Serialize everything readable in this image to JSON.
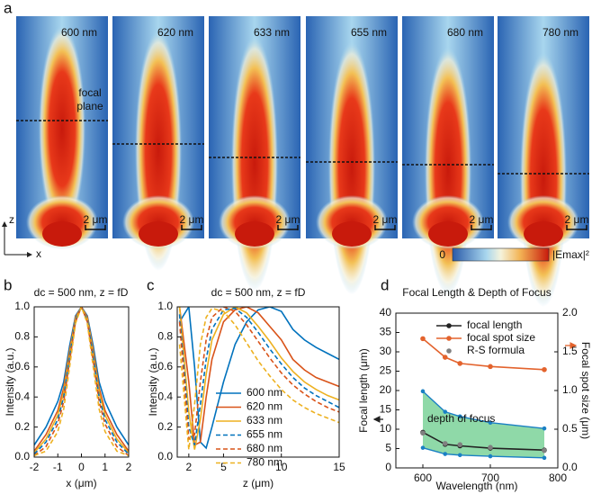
{
  "panel_labels": [
    "a",
    "b",
    "c",
    "d"
  ],
  "field_maps": {
    "wavelengths": [
      "600 nm",
      "620 nm",
      "633 nm",
      "655 nm",
      "680 nm",
      "780 nm"
    ],
    "focal_plane_label": [
      "focal",
      "plane"
    ],
    "scale_bar": "2 μm",
    "colorbar": {
      "min_label": "0",
      "max_label": "|Emax|²"
    },
    "axes": {
      "z": "z",
      "x": "x"
    }
  },
  "chart_data": [
    {
      "type": "line",
      "title": "dc = 500 nm, z = fD",
      "x_label": "x (μm)",
      "y_label": "Intensity (a.u.)",
      "x": [
        -2,
        -1.5,
        -1,
        -0.75,
        -0.5,
        -0.25,
        0,
        0.25,
        0.5,
        0.75,
        1,
        1.5,
        2
      ],
      "xlim": [
        -2,
        2
      ],
      "xticks": [
        -2,
        -1,
        0,
        1,
        2
      ],
      "ylim": [
        0,
        1
      ],
      "yticks": [
        {
          "value": 0,
          "label": "0.0"
        },
        {
          "value": 0.2,
          "label": "0.2"
        },
        {
          "value": 0.4,
          "label": "0.4"
        },
        {
          "value": 0.6,
          "label": "0.6"
        },
        {
          "value": 0.8,
          "label": "0.8"
        },
        {
          "value": 1,
          "label": "1.0"
        }
      ],
      "series": [
        {
          "name": "600 nm",
          "color": "#0072bd",
          "linestyle": "solid",
          "values": [
            0.08,
            0.2,
            0.37,
            0.5,
            0.74,
            0.94,
            1,
            0.94,
            0.74,
            0.5,
            0.37,
            0.2,
            0.08
          ]
        },
        {
          "name": "620 nm",
          "color": "#d95319",
          "linestyle": "solid",
          "values": [
            0.04,
            0.15,
            0.31,
            0.46,
            0.71,
            0.93,
            1,
            0.93,
            0.71,
            0.46,
            0.31,
            0.15,
            0.04
          ]
        },
        {
          "name": "633 nm",
          "color": "#edb120",
          "linestyle": "solid",
          "values": [
            0.03,
            0.12,
            0.28,
            0.43,
            0.69,
            0.92,
            1,
            0.92,
            0.69,
            0.43,
            0.28,
            0.12,
            0.03
          ]
        },
        {
          "name": "655 nm",
          "color": "#0072bd",
          "linestyle": "dashed",
          "values": [
            0.02,
            0.1,
            0.25,
            0.4,
            0.67,
            0.91,
            1,
            0.91,
            0.67,
            0.4,
            0.25,
            0.1,
            0.02
          ]
        },
        {
          "name": "680 nm",
          "color": "#d95319",
          "linestyle": "dashed",
          "values": [
            0.01,
            0.07,
            0.22,
            0.37,
            0.64,
            0.9,
            1,
            0.9,
            0.64,
            0.37,
            0.22,
            0.07,
            0.01
          ]
        },
        {
          "name": "780 nm",
          "color": "#edb120",
          "linestyle": "dashed",
          "values": [
            0.01,
            0.04,
            0.17,
            0.32,
            0.6,
            0.89,
            1,
            0.89,
            0.6,
            0.32,
            0.17,
            0.04,
            0.01
          ]
        }
      ]
    },
    {
      "type": "line",
      "title": "dc = 500 nm, z = fD",
      "x_label": "z (μm)",
      "y_label": "Intensity (a.u.)",
      "x": [
        1.2,
        2,
        2.5,
        3,
        3.5,
        4,
        5,
        6,
        7,
        8,
        9,
        10,
        11,
        12,
        13,
        14,
        15
      ],
      "xlim": [
        1,
        15
      ],
      "xticks": [
        2,
        5,
        10,
        15
      ],
      "ylim": [
        0,
        1
      ],
      "yticks": [
        {
          "value": 0,
          "label": "0.0"
        },
        {
          "value": 0.2,
          "label": "0.2"
        },
        {
          "value": 0.4,
          "label": "0.4"
        },
        {
          "value": 0.6,
          "label": "0.6"
        },
        {
          "value": 0.8,
          "label": "0.8"
        },
        {
          "value": 1,
          "label": "1.0"
        }
      ],
      "legend": "lower center",
      "series": [
        {
          "name": "600 nm",
          "color": "#0072bd",
          "linestyle": "solid",
          "values": [
            0.9,
            1,
            0.6,
            0.1,
            0.06,
            0.2,
            0.5,
            0.75,
            0.9,
            0.98,
            1,
            0.97,
            0.85,
            0.78,
            0.73,
            0.69,
            0.65
          ]
        },
        {
          "name": "620 nm",
          "color": "#d95319",
          "linestyle": "solid",
          "values": [
            1,
            0.5,
            0.08,
            0.1,
            0.4,
            0.65,
            0.9,
            0.98,
            1,
            0.96,
            0.87,
            0.78,
            0.65,
            0.58,
            0.53,
            0.5,
            0.47
          ]
        },
        {
          "name": "633 nm",
          "color": "#edb120",
          "linestyle": "solid",
          "values": [
            1,
            0.3,
            0.05,
            0.25,
            0.55,
            0.78,
            0.95,
            1,
            0.96,
            0.87,
            0.77,
            0.66,
            0.57,
            0.5,
            0.45,
            0.41,
            0.38
          ]
        },
        {
          "name": "655 nm",
          "color": "#0072bd",
          "linestyle": "dashed",
          "values": [
            0.95,
            0.2,
            0.08,
            0.35,
            0.65,
            0.85,
            0.98,
            0.99,
            0.93,
            0.83,
            0.72,
            0.62,
            0.53,
            0.46,
            0.41,
            0.37,
            0.33
          ]
        },
        {
          "name": "680 nm",
          "color": "#d95319",
          "linestyle": "dashed",
          "values": [
            0.9,
            0.12,
            0.15,
            0.5,
            0.78,
            0.93,
            1,
            0.97,
            0.88,
            0.77,
            0.66,
            0.56,
            0.48,
            0.42,
            0.37,
            0.33,
            0.3
          ]
        },
        {
          "name": "780 nm",
          "color": "#edb120",
          "linestyle": "dashed",
          "values": [
            0.75,
            0.05,
            0.35,
            0.75,
            0.93,
            0.99,
            0.97,
            0.88,
            0.76,
            0.64,
            0.54,
            0.45,
            0.38,
            0.33,
            0.29,
            0.26,
            0.23
          ]
        }
      ]
    },
    {
      "type": "line",
      "title": "Focal Length & Depth of Focus",
      "x_label": "Wavelength (nm)",
      "y_label": "Focal length (μm)",
      "y2_label": "Focal spot size (μm)",
      "x": [
        600,
        633,
        655,
        700,
        780
      ],
      "xlim": [
        560,
        800
      ],
      "xticks": [
        600,
        700,
        800
      ],
      "ylim": [
        0,
        40
      ],
      "yticks": [
        0,
        5,
        10,
        15,
        20,
        25,
        30,
        35,
        40
      ],
      "y2lim": [
        0,
        2
      ],
      "y2ticks": [
        {
          "value": 0,
          "label": "0.0"
        },
        {
          "value": 0.5,
          "label": "0.5"
        },
        {
          "value": 1,
          "label": "1.0"
        },
        {
          "value": 1.5,
          "label": "1.5"
        },
        {
          "value": 2,
          "label": "2.0"
        }
      ],
      "legend": "upper center",
      "band": {
        "label": "depth of focus",
        "color": "#8fd9a8",
        "line_color": "#1a80c4",
        "upper": [
          19.8,
          14.5,
          13.3,
          11.7,
          10.2
        ],
        "lower": [
          5.2,
          3.6,
          3.3,
          3.0,
          2.6
        ]
      },
      "series": [
        {
          "name": "focal length",
          "color": "#222222",
          "linestyle": "solid",
          "marker": true,
          "values": [
            9.2,
            6.1,
            5.7,
            5.1,
            4.6
          ]
        },
        {
          "name": "focal spot size",
          "color": "#e3632d",
          "linestyle": "solid",
          "marker": true,
          "axis": "y2",
          "values": [
            1.67,
            1.43,
            1.35,
            1.31,
            1.27
          ]
        },
        {
          "name": "R-S formula",
          "color": "#808080",
          "linestyle": "none",
          "marker": true,
          "values": [
            9.0,
            6.3,
            6.0,
            5.3,
            4.5
          ]
        }
      ]
    }
  ]
}
